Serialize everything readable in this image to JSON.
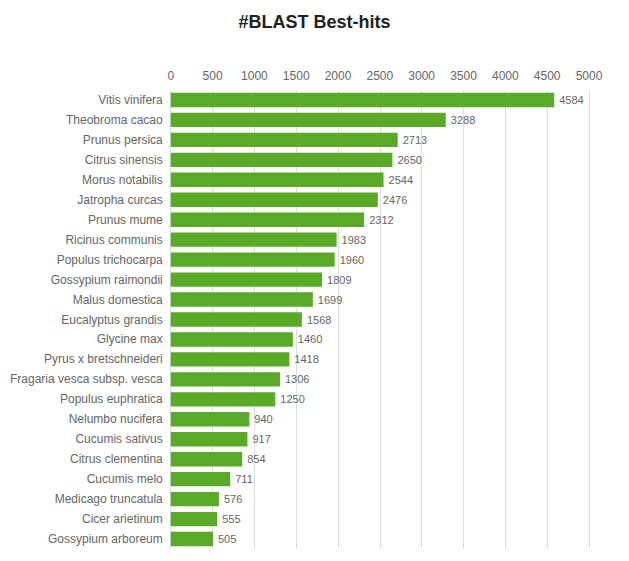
{
  "chart_data": {
    "type": "bar",
    "orientation": "horizontal",
    "title": "#BLAST Best-hits",
    "categories": [
      "Gossypium arboreum",
      "Cicer arietinum",
      "Medicago truncatula",
      "Cucumis melo",
      "Citrus clementina",
      "Cucumis sativus",
      "Nelumbo nucifera",
      "Populus euphratica",
      "Fragaria vesca subsp. vesca",
      "Pyrus x bretschneideri",
      "Glycine max",
      "Eucalyptus grandis",
      "Malus domestica",
      "Gossypium raimondii",
      "Populus trichocarpa",
      "Ricinus communis",
      "Prunus mume",
      "Jatropha curcas",
      "Morus notabilis",
      "Citrus sinensis",
      "Prunus persica",
      "Theobroma cacao",
      "Vitis vinifera"
    ],
    "values": [
      505,
      555,
      576,
      711,
      854,
      917,
      940,
      1250,
      1306,
      1418,
      1460,
      1568,
      1699,
      1809,
      1960,
      1983,
      2312,
      2476,
      2544,
      2650,
      2713,
      3288,
      4584
    ],
    "color": "#5aaa28",
    "xlim": [
      0,
      5000
    ],
    "xticks": [
      0,
      500,
      1000,
      1500,
      2000,
      2500,
      3000,
      3500,
      4000,
      4500,
      5000
    ],
    "grid": true,
    "data_labels": true
  }
}
